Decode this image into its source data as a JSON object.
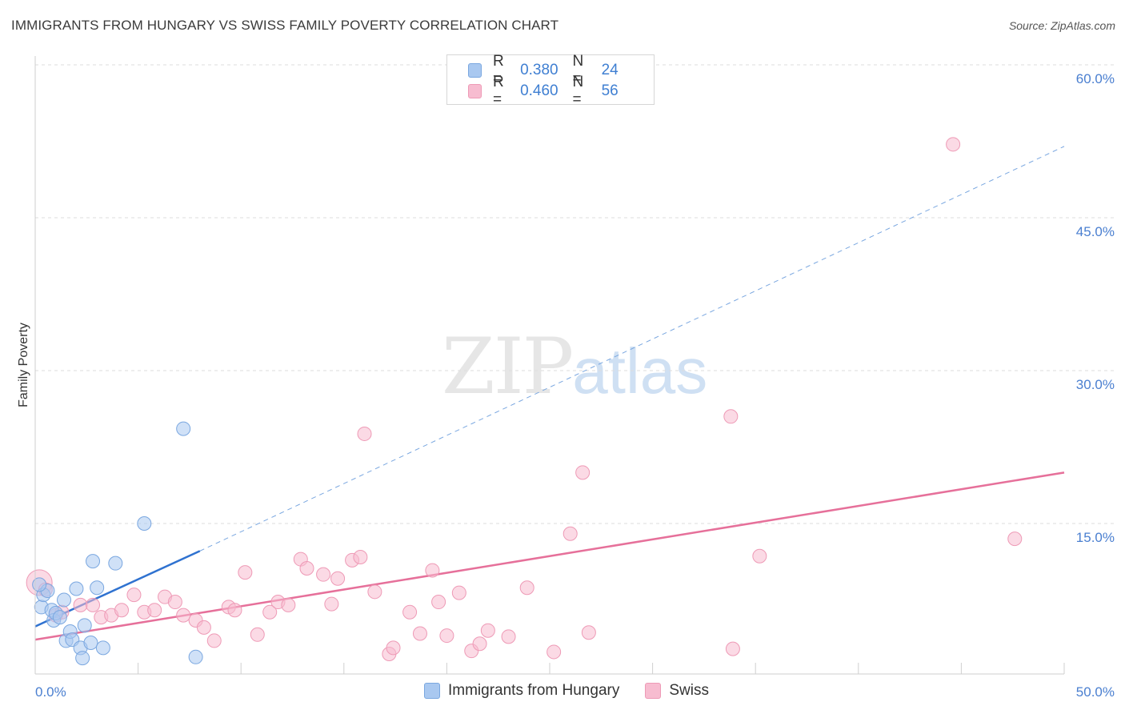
{
  "title": "IMMIGRANTS FROM HUNGARY VS SWISS FAMILY POVERTY CORRELATION CHART",
  "source": "Source: ZipAtlas.com",
  "watermark": {
    "zip": "ZIP",
    "atlas": "atlas"
  },
  "legend_top": [
    {
      "r_label": "R =",
      "r_value": "0.380",
      "n_label": "N =",
      "n_value": "24"
    },
    {
      "r_label": "R =",
      "r_value": "0.460",
      "n_label": "N =",
      "n_value": "56"
    }
  ],
  "legend_bottom": [
    {
      "label": "Immigrants from Hungary"
    },
    {
      "label": "Swiss"
    }
  ],
  "colors": {
    "hungary_fill": "#a9c8f0",
    "hungary_stroke": "#7aa7e0",
    "hungary_line": "#2f72d0",
    "swiss_fill": "#f7bcd0",
    "swiss_stroke": "#ee9ab6",
    "swiss_line": "#e6709a",
    "grid": "#dddddd",
    "tick_text": "#4a7fd0"
  },
  "chart_data": {
    "type": "scatter",
    "title": "IMMIGRANTS FROM HUNGARY VS SWISS FAMILY POVERTY CORRELATION CHART",
    "xlabel": "",
    "ylabel": "Family Poverty",
    "xlim": [
      0,
      50
    ],
    "ylim": [
      0,
      62
    ],
    "x_tick_labels": [
      "0.0%",
      "50.0%"
    ],
    "y_ticks": [
      15,
      30,
      45,
      60
    ],
    "y_tick_labels": [
      "15.0%",
      "30.0%",
      "45.0%",
      "60.0%"
    ],
    "series": [
      {
        "name": "Immigrants from Hungary",
        "points": [
          [
            0.3,
            6.8
          ],
          [
            0.4,
            8.0
          ],
          [
            0.6,
            8.4
          ],
          [
            0.8,
            6.5
          ],
          [
            0.9,
            5.5
          ],
          [
            1.0,
            6.2
          ],
          [
            1.2,
            5.8
          ],
          [
            1.4,
            7.5
          ],
          [
            1.5,
            3.5
          ],
          [
            1.7,
            4.4
          ],
          [
            1.8,
            3.6
          ],
          [
            2.0,
            8.6
          ],
          [
            2.2,
            2.8
          ],
          [
            2.3,
            1.8
          ],
          [
            2.4,
            5.0
          ],
          [
            2.7,
            3.3
          ],
          [
            2.8,
            11.3
          ],
          [
            3.0,
            8.7
          ],
          [
            3.3,
            2.8
          ],
          [
            3.9,
            11.1
          ],
          [
            5.3,
            15.0
          ],
          [
            7.2,
            24.3
          ],
          [
            7.8,
            1.9
          ],
          [
            0.2,
            9.0
          ]
        ],
        "trend": {
          "x": [
            0,
            8.0
          ],
          "y": [
            4.9,
            12.3
          ],
          "style": "solid"
        },
        "trend_extension": {
          "x": [
            8.0,
            50.0
          ],
          "y": [
            12.3,
            52.0
          ],
          "style": "dashed"
        }
      },
      {
        "name": "Swiss",
        "points": [
          [
            0.2,
            9.2
          ],
          [
            1.0,
            6.0
          ],
          [
            1.3,
            6.3
          ],
          [
            2.2,
            7.0
          ],
          [
            2.8,
            7.0
          ],
          [
            3.2,
            5.8
          ],
          [
            3.7,
            6.0
          ],
          [
            4.2,
            6.5
          ],
          [
            4.8,
            8.0
          ],
          [
            5.3,
            6.3
          ],
          [
            5.8,
            6.5
          ],
          [
            6.3,
            7.8
          ],
          [
            6.8,
            7.3
          ],
          [
            7.2,
            6.0
          ],
          [
            7.8,
            5.5
          ],
          [
            8.2,
            4.8
          ],
          [
            8.7,
            3.5
          ],
          [
            9.4,
            6.8
          ],
          [
            9.7,
            6.5
          ],
          [
            10.2,
            10.2
          ],
          [
            10.8,
            4.1
          ],
          [
            11.4,
            6.3
          ],
          [
            11.8,
            7.3
          ],
          [
            12.3,
            7.0
          ],
          [
            12.9,
            11.5
          ],
          [
            13.2,
            10.6
          ],
          [
            14.0,
            10.0
          ],
          [
            14.4,
            7.1
          ],
          [
            14.7,
            9.6
          ],
          [
            15.4,
            11.4
          ],
          [
            15.8,
            11.7
          ],
          [
            16.0,
            23.8
          ],
          [
            16.5,
            8.3
          ],
          [
            17.2,
            2.2
          ],
          [
            17.4,
            2.8
          ],
          [
            18.2,
            6.3
          ],
          [
            18.7,
            4.2
          ],
          [
            19.3,
            10.4
          ],
          [
            19.6,
            7.3
          ],
          [
            20.0,
            4.0
          ],
          [
            20.6,
            8.2
          ],
          [
            21.2,
            2.5
          ],
          [
            21.6,
            3.2
          ],
          [
            22.0,
            4.5
          ],
          [
            23.0,
            3.9
          ],
          [
            23.9,
            8.7
          ],
          [
            25.2,
            2.4
          ],
          [
            26.0,
            14.0
          ],
          [
            26.6,
            20.0
          ],
          [
            26.9,
            4.3
          ],
          [
            33.8,
            25.5
          ],
          [
            33.9,
            2.7
          ],
          [
            35.2,
            11.8
          ],
          [
            44.6,
            52.2
          ],
          [
            47.6,
            13.5
          ],
          [
            0.5,
            8.5
          ]
        ],
        "trend": {
          "x": [
            0,
            50.0
          ],
          "y": [
            3.6,
            20.0
          ],
          "style": "solid"
        }
      }
    ]
  }
}
